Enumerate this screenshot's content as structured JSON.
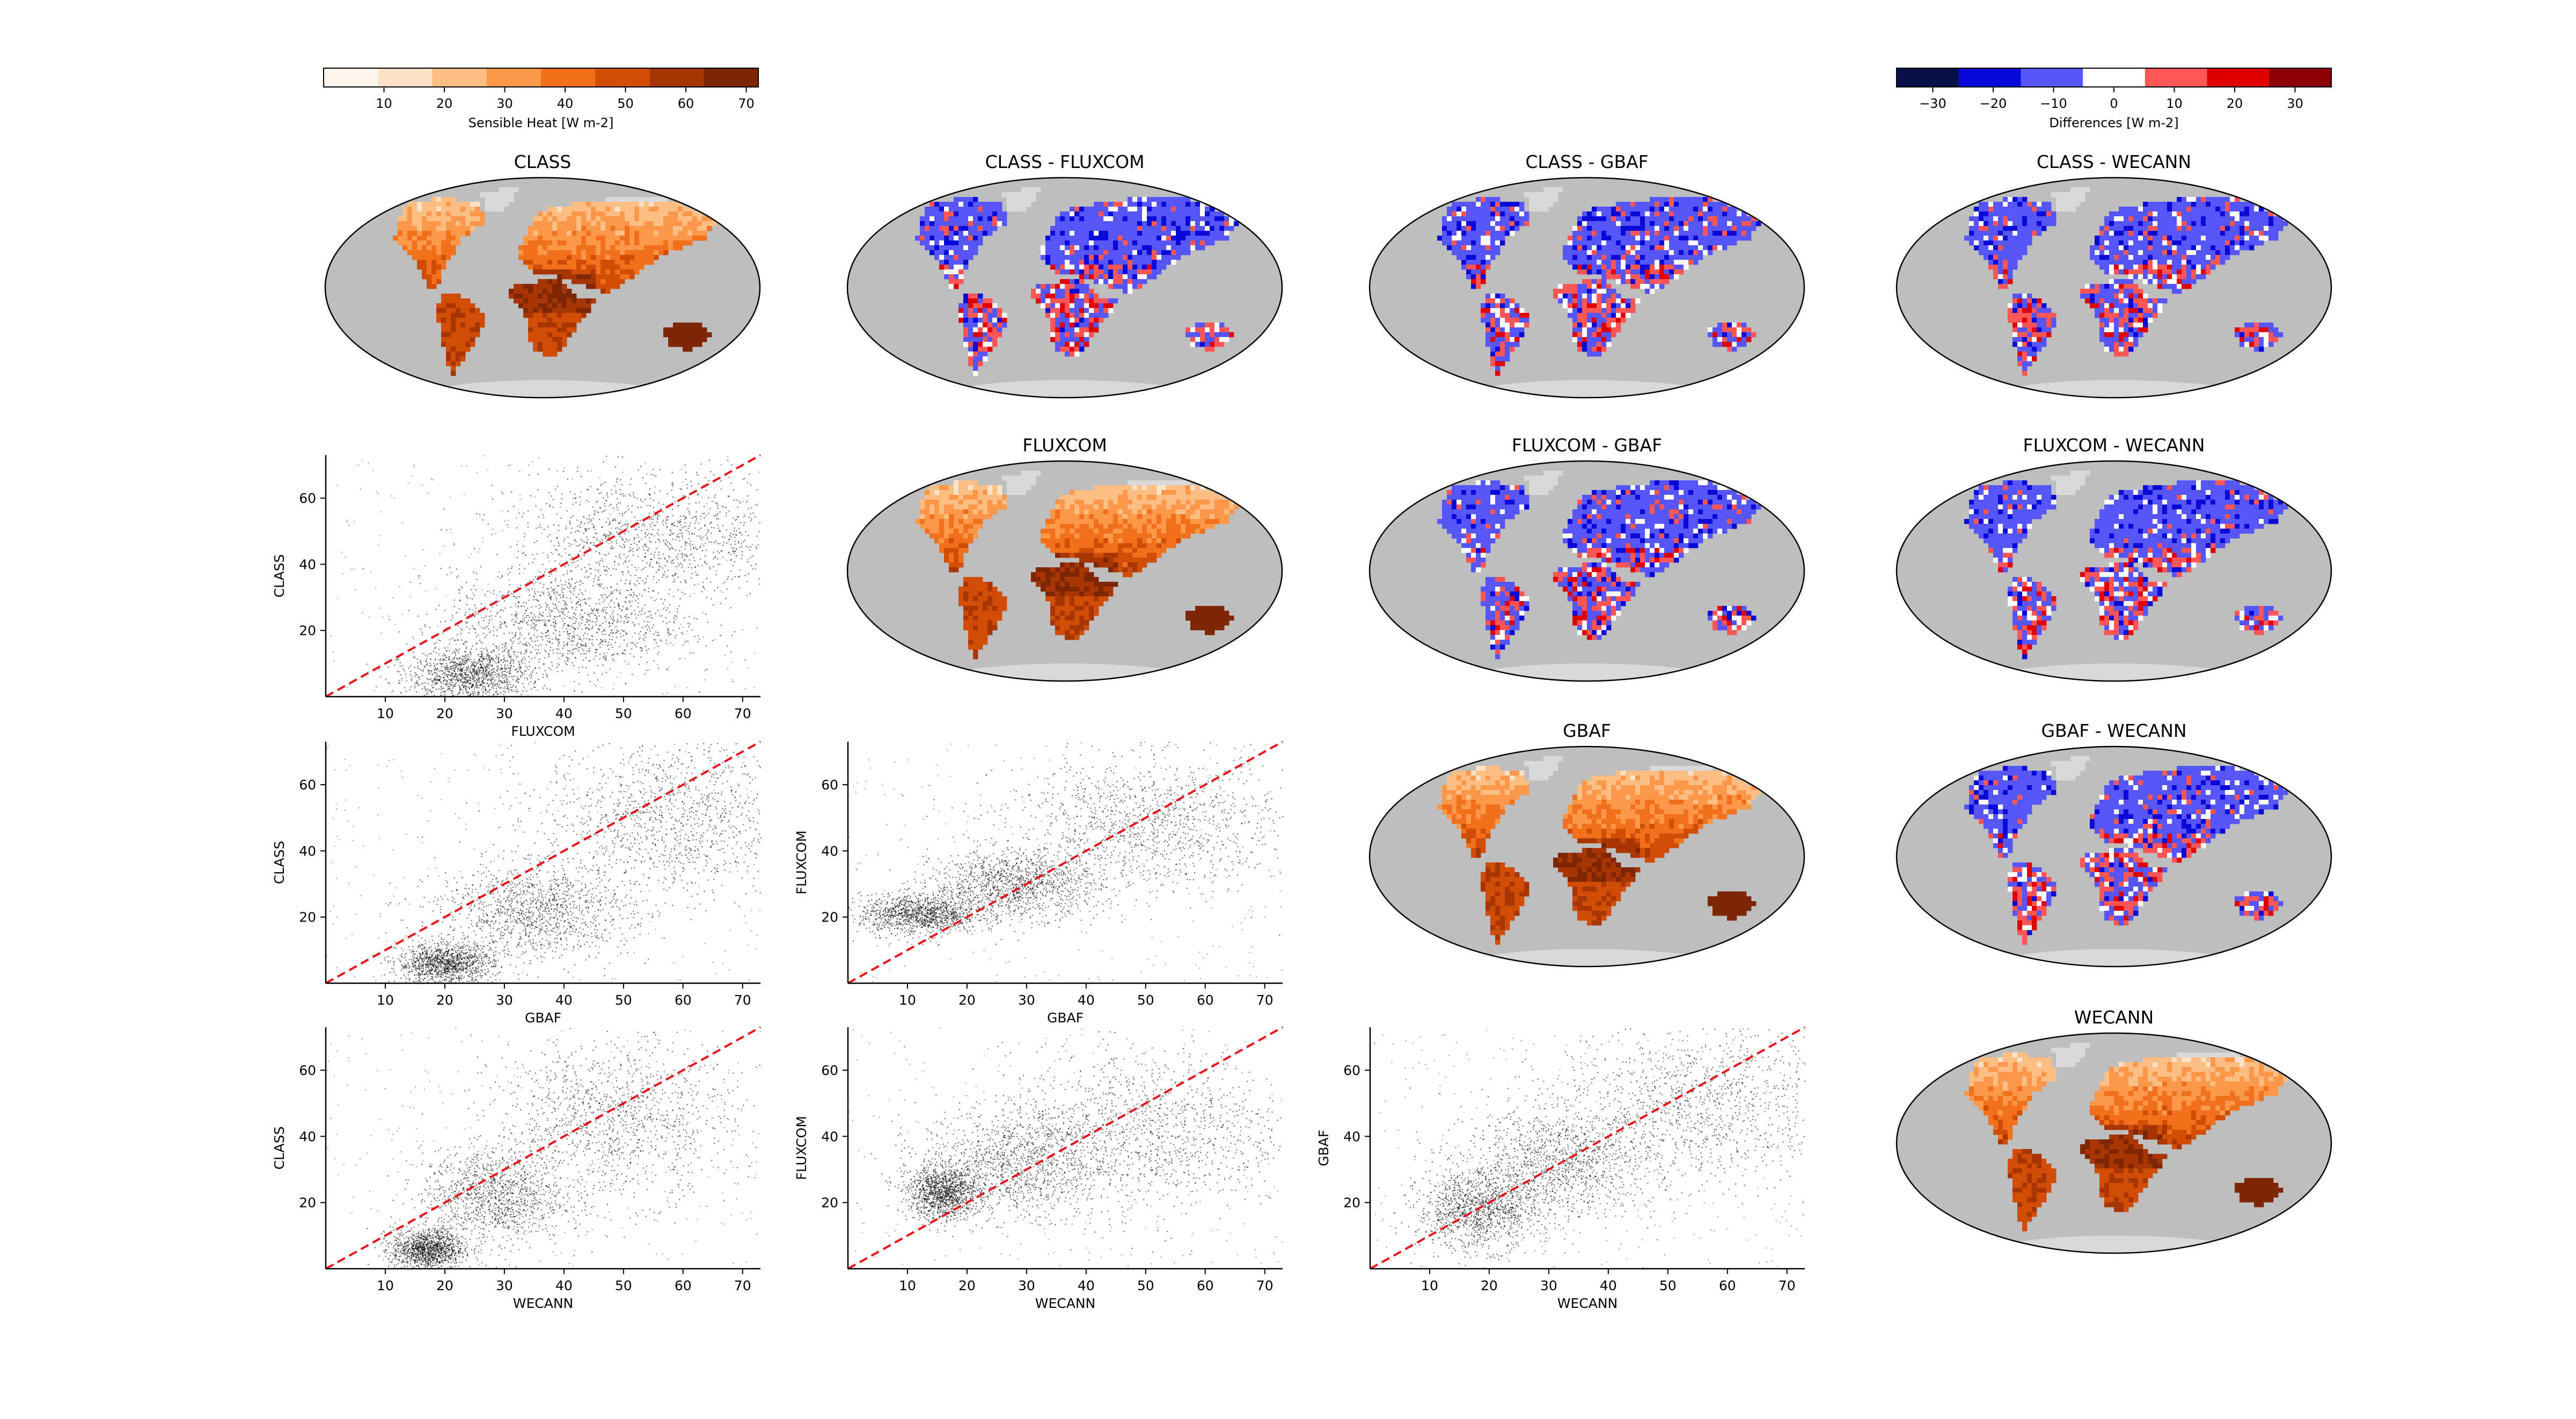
{
  "figure": {
    "colorbars": {
      "sensible": {
        "label": "Sensible Heat [W m-2]",
        "colors": [
          "#fff5eb",
          "#fee2c8",
          "#fdbe84",
          "#fd974a",
          "#f0701b",
          "#d14c04",
          "#a73602",
          "#7f2704"
        ],
        "tick_values": [
          10,
          20,
          30,
          40,
          50,
          60,
          70
        ],
        "range": [
          0,
          72
        ]
      },
      "difference": {
        "label": "Differences [W m-2]",
        "colors": [
          "#08104a",
          "#0a0ad8",
          "#5656f8",
          "#ffffff",
          "#ff5555",
          "#e00000",
          "#8b0000"
        ],
        "tick_values": [
          -30,
          -20,
          -10,
          0,
          10,
          20,
          30
        ],
        "range": [
          -36,
          36
        ]
      }
    },
    "map_titles": {
      "class": "CLASS",
      "class_fluxcom": "CLASS - FLUXCOM",
      "class_gbaf": "CLASS - GBAF",
      "class_wecann": "CLASS - WECANN",
      "fluxcom": "FLUXCOM",
      "fluxcom_gbaf": "FLUXCOM - GBAF",
      "fluxcom_wecann": "FLUXCOM - WECANN",
      "gbaf": "GBAF",
      "gbaf_wecann": "GBAF - WECANN",
      "wecann": "WECANN"
    },
    "scatter_labels": {
      "class": "CLASS",
      "fluxcom": "FLUXCOM",
      "gbaf": "GBAF",
      "wecann": "WECANN"
    }
  },
  "chart_data": [
    {
      "type": "scatter",
      "xlabel": "FLUXCOM",
      "ylabel": "CLASS",
      "xlim": [
        0,
        73
      ],
      "ylim": [
        0,
        73
      ],
      "x_ticks": [
        10,
        20,
        30,
        40,
        50,
        60,
        70
      ],
      "y_ticks": [
        20,
        40,
        60
      ],
      "reference_line": "1:1 (red dashed)",
      "clusters": [
        {
          "x": 24,
          "y": 7,
          "spread": [
            5,
            4
          ]
        },
        {
          "x": 40,
          "y": 22,
          "spread": [
            10,
            8
          ]
        },
        {
          "x": 55,
          "y": 48,
          "spread": [
            12,
            10
          ]
        }
      ]
    },
    {
      "type": "scatter",
      "xlabel": "GBAF",
      "ylabel": "CLASS",
      "xlim": [
        0,
        73
      ],
      "ylim": [
        0,
        73
      ],
      "x_ticks": [
        10,
        20,
        30,
        40,
        50,
        60,
        70
      ],
      "y_ticks": [
        20,
        40,
        60
      ],
      "reference_line": "1:1 (red dashed)",
      "clusters": [
        {
          "x": 20,
          "y": 6,
          "spread": [
            4,
            3
          ]
        },
        {
          "x": 35,
          "y": 22,
          "spread": [
            8,
            7
          ]
        },
        {
          "x": 58,
          "y": 50,
          "spread": [
            11,
            12
          ]
        }
      ]
    },
    {
      "type": "scatter",
      "xlabel": "GBAF",
      "ylabel": "FLUXCOM",
      "xlim": [
        0,
        73
      ],
      "ylim": [
        0,
        73
      ],
      "x_ticks": [
        10,
        20,
        30,
        40,
        50,
        60,
        70
      ],
      "y_ticks": [
        20,
        40,
        60
      ],
      "reference_line": "1:1 (red dashed)",
      "clusters": [
        {
          "x": 12,
          "y": 21,
          "spread": [
            5,
            3
          ]
        },
        {
          "x": 28,
          "y": 30,
          "spread": [
            7,
            5
          ]
        },
        {
          "x": 50,
          "y": 48,
          "spread": [
            12,
            10
          ]
        }
      ]
    },
    {
      "type": "scatter",
      "xlabel": "WECANN",
      "ylabel": "CLASS",
      "xlim": [
        0,
        73
      ],
      "ylim": [
        0,
        73
      ],
      "x_ticks": [
        10,
        20,
        30,
        40,
        50,
        60,
        70
      ],
      "y_ticks": [
        20,
        40,
        60
      ],
      "reference_line": "1:1 (red dashed)",
      "clusters": [
        {
          "x": 17,
          "y": 6,
          "spread": [
            3,
            3
          ]
        },
        {
          "x": 28,
          "y": 22,
          "spread": [
            6,
            7
          ]
        },
        {
          "x": 48,
          "y": 45,
          "spread": [
            10,
            12
          ]
        }
      ]
    },
    {
      "type": "scatter",
      "xlabel": "WECANN",
      "ylabel": "FLUXCOM",
      "xlim": [
        0,
        73
      ],
      "ylim": [
        0,
        73
      ],
      "x_ticks": [
        10,
        20,
        30,
        40,
        50,
        60,
        70
      ],
      "y_ticks": [
        20,
        40,
        60
      ],
      "reference_line": "1:1 (red dashed)",
      "clusters": [
        {
          "x": 16,
          "y": 23,
          "spread": [
            3,
            4
          ]
        },
        {
          "x": 28,
          "y": 32,
          "spread": [
            8,
            8
          ]
        },
        {
          "x": 50,
          "y": 42,
          "spread": [
            12,
            12
          ]
        }
      ]
    },
    {
      "type": "scatter",
      "xlabel": "WECANN",
      "ylabel": "GBAF",
      "xlim": [
        0,
        73
      ],
      "ylim": [
        0,
        73
      ],
      "x_ticks": [
        10,
        20,
        30,
        40,
        50,
        60,
        70
      ],
      "y_ticks": [
        20,
        40,
        60
      ],
      "reference_line": "1:1 (red dashed)",
      "clusters": [
        {
          "x": 18,
          "y": 18,
          "spread": [
            5,
            6
          ]
        },
        {
          "x": 32,
          "y": 32,
          "spread": [
            8,
            8
          ]
        },
        {
          "x": 55,
          "y": 50,
          "spread": [
            12,
            12
          ]
        }
      ]
    }
  ]
}
